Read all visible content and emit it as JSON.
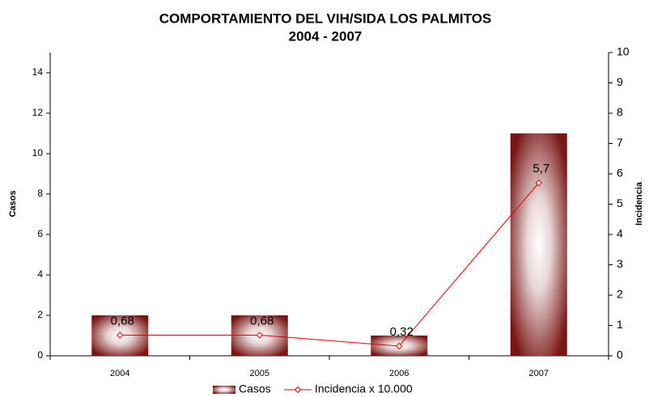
{
  "chart_data": {
    "type": "bar_line",
    "title": "COMPORTAMIENTO DEL VIH/SIDA LOS PALMITOS",
    "subtitle": "2004 - 2007",
    "y_label": "Casos",
    "y2_label": "Incidencia",
    "categories": [
      "2004",
      "2005",
      "2006",
      "2007"
    ],
    "series": [
      {
        "name": "Casos",
        "type": "bar",
        "color": "#7a1515",
        "values": [
          2,
          2,
          1,
          11
        ]
      },
      {
        "name": "Incidencia x 10.000",
        "type": "line",
        "axis": "y2",
        "color": "#e00000",
        "values": [
          0.68,
          0.68,
          0.32,
          5.7
        ],
        "value_labels": [
          "0,68",
          "0,68",
          "0,32",
          "5,7"
        ]
      }
    ],
    "ylim": [
      0,
      15
    ],
    "yticks": [
      0,
      2,
      4,
      6,
      8,
      10,
      12,
      14
    ],
    "y2lim": [
      0,
      10
    ],
    "y2ticks": [
      0,
      1,
      2,
      3,
      4,
      5,
      6,
      7,
      8,
      9,
      10
    ],
    "legend": "bottom"
  }
}
